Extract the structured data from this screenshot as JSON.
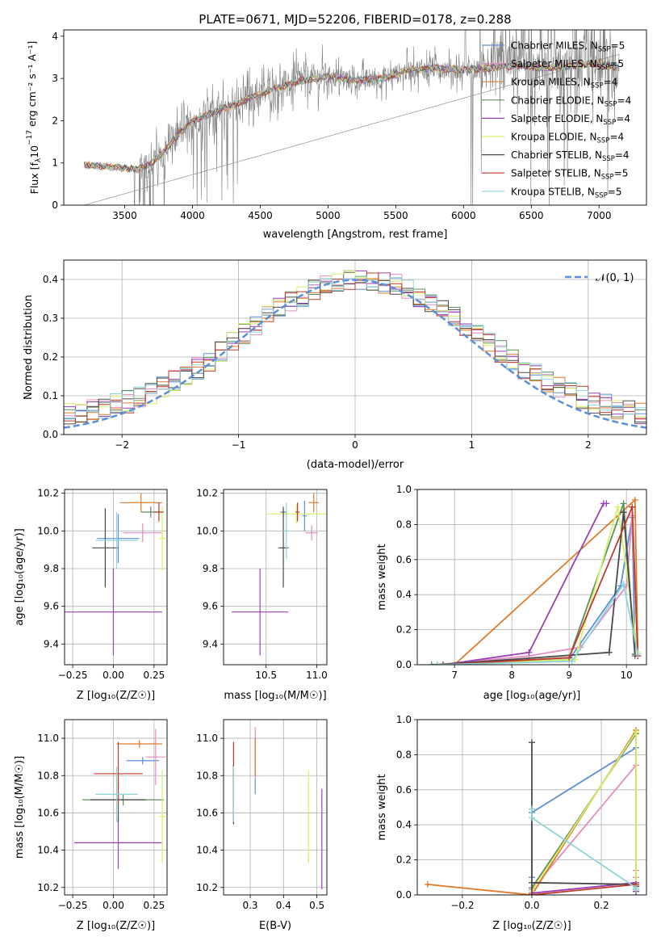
{
  "figure_title": "PLATE=0671, MJD=52206, FIBERID=0178, z=0.288",
  "models": [
    {
      "name": "Chabrier MILES",
      "n": "5",
      "color": "#5b8fd9"
    },
    {
      "name": "Salpeter MILES",
      "n": "5",
      "color": "#e58cbf"
    },
    {
      "name": "Kroupa MILES",
      "n": "4",
      "color": "#e07a2a"
    },
    {
      "name": "Chabrier ELODIE",
      "n": "4",
      "color": "#5e8c5e"
    },
    {
      "name": "Salpeter ELODIE",
      "n": "4",
      "color": "#9b3fb5"
    },
    {
      "name": "Kroupa ELODIE",
      "n": "4",
      "color": "#d6f06a"
    },
    {
      "name": "Chabrier STELIB",
      "n": "4",
      "color": "#4a4a4a"
    },
    {
      "name": "Salpeter STELIB",
      "n": "5",
      "color": "#c0392b"
    },
    {
      "name": "Kroupa STELIB",
      "n": "5",
      "color": "#8fd3d9"
    }
  ],
  "chart_data": [
    {
      "id": "spectrum",
      "type": "line",
      "xlabel": "wavelength [Angstrom, rest frame]",
      "ylabel_prefix": "Flux [f",
      "ylabel_sub": "λ",
      "ylabel_rest": "10",
      "ylabel_exp": "−17",
      "ylabel_units": " erg cm⁻² s⁻¹ A⁻¹]",
      "xlim": [
        3050,
        7350
      ],
      "ylim": [
        0,
        4.15
      ],
      "xticks": [
        3500,
        4000,
        4500,
        5000,
        5500,
        6000,
        6500,
        7000
      ],
      "yticks": [
        0,
        1,
        2,
        3,
        4
      ],
      "data_color": "#808080",
      "legend_position": "top-right",
      "continuum": [
        [
          3200,
          0.95
        ],
        [
          3400,
          0.9
        ],
        [
          3600,
          0.85
        ],
        [
          3700,
          1.0
        ],
        [
          3800,
          1.3
        ],
        [
          3900,
          1.7
        ],
        [
          4000,
          2.0
        ],
        [
          4200,
          2.25
        ],
        [
          4400,
          2.5
        ],
        [
          4600,
          2.75
        ],
        [
          4800,
          2.95
        ],
        [
          5000,
          3.05
        ],
        [
          5200,
          2.95
        ],
        [
          5400,
          3.0
        ],
        [
          5600,
          3.2
        ],
        [
          5800,
          3.25
        ],
        [
          6000,
          3.2
        ],
        [
          6200,
          3.25
        ],
        [
          6400,
          3.3
        ],
        [
          6600,
          3.25
        ],
        [
          6800,
          3.3
        ],
        [
          7000,
          3.35
        ],
        [
          7150,
          3.25
        ]
      ]
    },
    {
      "id": "residual_hist",
      "type": "histogram",
      "xlabel": "(data-model)/error",
      "ylabel": "Normed distribution",
      "xlim": [
        -2.5,
        2.5
      ],
      "ylim": [
        0,
        0.45
      ],
      "xticks": [
        -2,
        -1,
        0,
        1,
        2
      ],
      "xtick_labels": [
        "−2",
        "−1",
        "0",
        "1",
        "2"
      ],
      "yticks": [
        0.0,
        0.1,
        0.2,
        0.3,
        0.4
      ],
      "grid": true,
      "bin_width": 0.1,
      "bins_start": -2.5,
      "reference_curve": {
        "label": "𝒩(0, 1)",
        "mean": 0,
        "sigma": 1,
        "color": "#5b8fd9",
        "style": "dashed"
      },
      "legend_position": "top-right"
    },
    {
      "id": "age_vs_Z",
      "type": "errorbar",
      "xlabel": "Z [log₁₀(Z/Z☉)]",
      "ylabel": "age  [log₁₀(age/yr)]",
      "xlim": [
        -0.3,
        0.33
      ],
      "ylim": [
        9.29,
        10.22
      ],
      "xticks": [
        -0.25,
        0.0,
        0.25
      ],
      "xtick_labels": [
        "−0.25",
        "0.00",
        "0.25"
      ],
      "yticks": [
        9.4,
        9.6,
        9.8,
        10.0,
        10.2
      ],
      "grid": true,
      "points": [
        {
          "x": 0.03,
          "xerr": 0.13,
          "y": 9.96,
          "yerr": 0.13,
          "color": "#5b8fd9"
        },
        {
          "x": 0.18,
          "xerr": 0.12,
          "y": 9.99,
          "yerr": 0.05,
          "color": "#e58cbf"
        },
        {
          "x": 0.17,
          "xerr": 0.13,
          "y": 10.15,
          "yerr": 0.05,
          "color": "#e07a2a"
        },
        {
          "x": 0.23,
          "xerr": 0.06,
          "y": 10.1,
          "yerr": 0.03,
          "color": "#5e8c5e"
        },
        {
          "x": 0.0,
          "xerr": 0.3,
          "y": 9.57,
          "yerr": 0.23,
          "color": "#9b3fb5"
        },
        {
          "x": 0.3,
          "xerr": 0.02,
          "y": 9.96,
          "yerr": 0.17,
          "color": "#d6f06a"
        },
        {
          "x": -0.05,
          "xerr": 0.08,
          "y": 9.91,
          "yerr": 0.21,
          "color": "#4a4a4a"
        },
        {
          "x": 0.28,
          "xerr": 0.03,
          "y": 10.1,
          "yerr": 0.05,
          "color": "#c0392b"
        },
        {
          "x": 0.02,
          "xerr": 0.13,
          "y": 9.95,
          "yerr": 0.15,
          "color": "#8fd3d9"
        }
      ]
    },
    {
      "id": "age_vs_mass",
      "type": "errorbar",
      "xlabel": "mass [log₁₀(M/M☉)]",
      "xlim": [
        10.08,
        11.1
      ],
      "ylim": [
        9.29,
        10.22
      ],
      "xticks": [
        10.5,
        11.0
      ],
      "xtick_labels": [
        "10.5",
        "11.0"
      ],
      "yticks": [
        9.4,
        9.6,
        9.8,
        10.0,
        10.2
      ],
      "grid": true,
      "points": [
        {
          "x": 10.88,
          "xerr": 0.02,
          "y": 10.08,
          "yerr": 0.08,
          "color": "#5b8fd9"
        },
        {
          "x": 10.95,
          "xerr": 0.06,
          "y": 9.99,
          "yerr": 0.04,
          "color": "#e58cbf"
        },
        {
          "x": 10.97,
          "xerr": 0.05,
          "y": 10.15,
          "yerr": 0.05,
          "color": "#e07a2a"
        },
        {
          "x": 10.67,
          "xerr": 0.03,
          "y": 10.1,
          "yerr": 0.03,
          "color": "#5e8c5e"
        },
        {
          "x": 10.44,
          "xerr": 0.28,
          "y": 9.57,
          "yerr": 0.23,
          "color": "#9b3fb5"
        },
        {
          "x": 10.8,
          "xerr": 0.3,
          "y": 10.09,
          "yerr": 0.05,
          "color": "#d6f06a"
        },
        {
          "x": 10.67,
          "xerr": 0.05,
          "y": 9.91,
          "yerr": 0.21,
          "color": "#4a4a4a"
        },
        {
          "x": 10.81,
          "xerr": 0.02,
          "y": 10.1,
          "yerr": 0.05,
          "color": "#c0392b"
        },
        {
          "x": 10.7,
          "xerr": 0.03,
          "y": 10.0,
          "yerr": 0.15,
          "color": "#8fd3d9"
        }
      ]
    },
    {
      "id": "weight_vs_age",
      "type": "line",
      "xlabel": "age  [log₁₀(age/yr)]",
      "ylabel": "mass weight",
      "xlim": [
        6.35,
        10.35
      ],
      "ylim": [
        0,
        1.0
      ],
      "xticks": [
        7,
        8,
        9,
        10
      ],
      "yticks": [
        0.0,
        0.2,
        0.4,
        0.6,
        0.8,
        1.0
      ],
      "grid": true,
      "series": [
        {
          "color": "#5b8fd9",
          "x": [
            6.7,
            9.0,
            9.9,
            10.1,
            10.15
          ],
          "y": [
            0.0,
            0.03,
            0.45,
            0.84,
            0.05
          ]
        },
        {
          "color": "#e58cbf",
          "x": [
            6.7,
            8.3,
            9.2,
            10.0,
            10.1,
            10.2
          ],
          "y": [
            0.0,
            0.05,
            0.1,
            0.45,
            0.85,
            0.05
          ]
        },
        {
          "color": "#e07a2a",
          "x": [
            7.0,
            10.15,
            10.2
          ],
          "y": [
            0.0,
            0.94,
            0.05
          ]
        },
        {
          "color": "#5e8c5e",
          "x": [
            6.6,
            9.0,
            9.95,
            10.15
          ],
          "y": [
            0.0,
            0.04,
            0.92,
            0.05
          ]
        },
        {
          "color": "#9b3fb5",
          "x": [
            6.8,
            8.3,
            9.6,
            9.65
          ],
          "y": [
            0.0,
            0.07,
            0.92,
            0.92
          ]
        },
        {
          "color": "#d6f06a",
          "x": [
            6.7,
            9.1,
            9.85,
            10.2
          ],
          "y": [
            0.0,
            0.03,
            0.9,
            0.07
          ]
        },
        {
          "color": "#4a4a4a",
          "x": [
            6.7,
            9.7,
            9.95,
            10.15
          ],
          "y": [
            0.0,
            0.07,
            0.87,
            0.06
          ]
        },
        {
          "color": "#c0392b",
          "x": [
            6.8,
            9.0,
            10.1,
            10.2
          ],
          "y": [
            0.0,
            0.04,
            0.9,
            0.05
          ]
        },
        {
          "color": "#8fd3d9",
          "x": [
            6.7,
            9.05,
            9.95,
            10.2
          ],
          "y": [
            0.0,
            0.02,
            0.46,
            0.06
          ]
        }
      ]
    },
    {
      "id": "mass_vs_Z",
      "type": "errorbar",
      "xlabel": "Z [log₁₀(Z/Z☉)]",
      "ylabel": "mass [log₁₀(M/M☉)]",
      "xlim": [
        -0.3,
        0.33
      ],
      "ylim": [
        10.16,
        11.1
      ],
      "xticks": [
        -0.25,
        0.0,
        0.25
      ],
      "xtick_labels": [
        "−0.25",
        "0.00",
        "0.25"
      ],
      "yticks": [
        10.2,
        10.4,
        10.6,
        10.8,
        11.0
      ],
      "grid": true,
      "points": [
        {
          "x": 0.18,
          "xerr": 0.1,
          "y": 10.88,
          "yerr": 0.02,
          "color": "#5b8fd9"
        },
        {
          "x": 0.26,
          "xerr": 0.06,
          "y": 10.9,
          "yerr": 0.15,
          "color": "#e58cbf"
        },
        {
          "x": 0.16,
          "xerr": 0.14,
          "y": 10.97,
          "yerr": 0.02,
          "color": "#e07a2a"
        },
        {
          "x": 0.06,
          "xerr": 0.25,
          "y": 10.67,
          "yerr": 0.03,
          "color": "#5e8c5e"
        },
        {
          "x": 0.03,
          "xerr": 0.27,
          "y": 10.44,
          "yerr": 0.14,
          "color": "#9b3fb5"
        },
        {
          "x": 0.3,
          "xerr": 0.02,
          "y": 10.58,
          "yerr": 0.25,
          "color": "#d6f06a"
        },
        {
          "x": 0.03,
          "xerr": 0.17,
          "y": 10.67,
          "yerr": 0.12,
          "color": "#4a4a4a"
        },
        {
          "x": 0.03,
          "xerr": 0.15,
          "y": 10.81,
          "yerr": 0.17,
          "color": "#c0392b"
        },
        {
          "x": 0.02,
          "xerr": 0.13,
          "y": 10.7,
          "yerr": 0.15,
          "color": "#8fd3d9"
        }
      ]
    },
    {
      "id": "mass_vs_EBV",
      "type": "errorbar",
      "xlabel": "E(B-V)",
      "xlim": [
        0.22,
        0.53
      ],
      "ylim": [
        10.16,
        11.1
      ],
      "xticks": [
        0.3,
        0.4,
        0.5
      ],
      "xtick_labels": [
        "0.3",
        "0.4",
        "0.5"
      ],
      "yticks": [
        10.2,
        10.4,
        10.6,
        10.8,
        11.0
      ],
      "grid": true,
      "points": [
        {
          "x": 0.315,
          "xerr": 0.0,
          "y": 10.85,
          "yerr": 0.15,
          "color": "#5b8fd9"
        },
        {
          "x": 0.315,
          "xerr": 0.0,
          "y": 10.92,
          "yerr": 0.14,
          "color": "#e58cbf"
        },
        {
          "x": 0.315,
          "xerr": 0.0,
          "y": 10.9,
          "yerr": 0.1,
          "color": "#e07a2a"
        },
        {
          "x": 0.25,
          "xerr": 0.0,
          "y": 10.7,
          "yerr": 0.16,
          "color": "#5e8c5e"
        },
        {
          "x": 0.515,
          "xerr": 0.0,
          "y": 10.46,
          "yerr": 0.27,
          "color": "#9b3fb5"
        },
        {
          "x": 0.475,
          "xerr": 0.0,
          "y": 10.58,
          "yerr": 0.25,
          "color": "#d6f06a"
        },
        {
          "x": 0.25,
          "xerr": 0.0,
          "y": 10.7,
          "yerr": 0.16,
          "color": "#4a4a4a"
        },
        {
          "x": 0.25,
          "xerr": 0.0,
          "y": 10.81,
          "yerr": 0.17,
          "color": "#c0392b"
        },
        {
          "x": 0.25,
          "xerr": 0.0,
          "y": 10.7,
          "yerr": 0.15,
          "color": "#8fd3d9"
        }
      ]
    },
    {
      "id": "weight_vs_Z",
      "type": "line",
      "xlabel": "Z [log₁₀(Z/Z☉)]",
      "ylabel": "mass weight",
      "xlim": [
        -0.33,
        0.33
      ],
      "ylim": [
        0,
        1.0
      ],
      "xticks": [
        -0.2,
        0.0,
        0.2
      ],
      "xtick_labels": [
        "−0.2",
        "0.0",
        "0.2"
      ],
      "yticks": [
        0.0,
        0.2,
        0.4,
        0.6,
        0.8,
        1.0
      ],
      "grid": true,
      "series": [
        {
          "color": "#5b8fd9",
          "x": [
            0.0,
            0.0,
            0.3,
            0.3,
            0.3
          ],
          "y": [
            0.1,
            0.47,
            0.84,
            0.05,
            0.02
          ]
        },
        {
          "color": "#e58cbf",
          "x": [
            0.0,
            0.3,
            0.3,
            0.3
          ],
          "y": [
            0.03,
            0.74,
            0.14,
            0.1
          ]
        },
        {
          "color": "#e07a2a",
          "x": [
            -0.3,
            0.0,
            0.3,
            0.3
          ],
          "y": [
            0.06,
            0.0,
            0.94,
            0.02
          ]
        },
        {
          "color": "#5e8c5e",
          "x": [
            0.0,
            0.3,
            0.3,
            0.3
          ],
          "y": [
            0.04,
            0.92,
            0.03,
            0.02
          ]
        },
        {
          "color": "#9b3fb5",
          "x": [
            0.0,
            0.3,
            0.3
          ],
          "y": [
            0.01,
            0.07,
            0.02
          ]
        },
        {
          "color": "#d6f06a",
          "x": [
            0.0,
            0.3,
            0.3,
            0.3
          ],
          "y": [
            0.02,
            0.93,
            0.03,
            0.04
          ]
        },
        {
          "color": "#4a4a4a",
          "x": [
            0.0,
            0.0,
            0.0,
            0.3,
            0.3
          ],
          "y": [
            0.87,
            0.0,
            0.07,
            0.06,
            0.05
          ]
        },
        {
          "color": "#c0392b",
          "x": [
            0.0,
            0.3,
            0.3
          ],
          "y": [
            0.0,
            0.06,
            0.05
          ]
        },
        {
          "color": "#8fd3d9",
          "x": [
            0.0,
            0.0,
            0.3,
            0.3
          ],
          "y": [
            0.49,
            0.44,
            0.04,
            0.03
          ]
        }
      ]
    }
  ]
}
